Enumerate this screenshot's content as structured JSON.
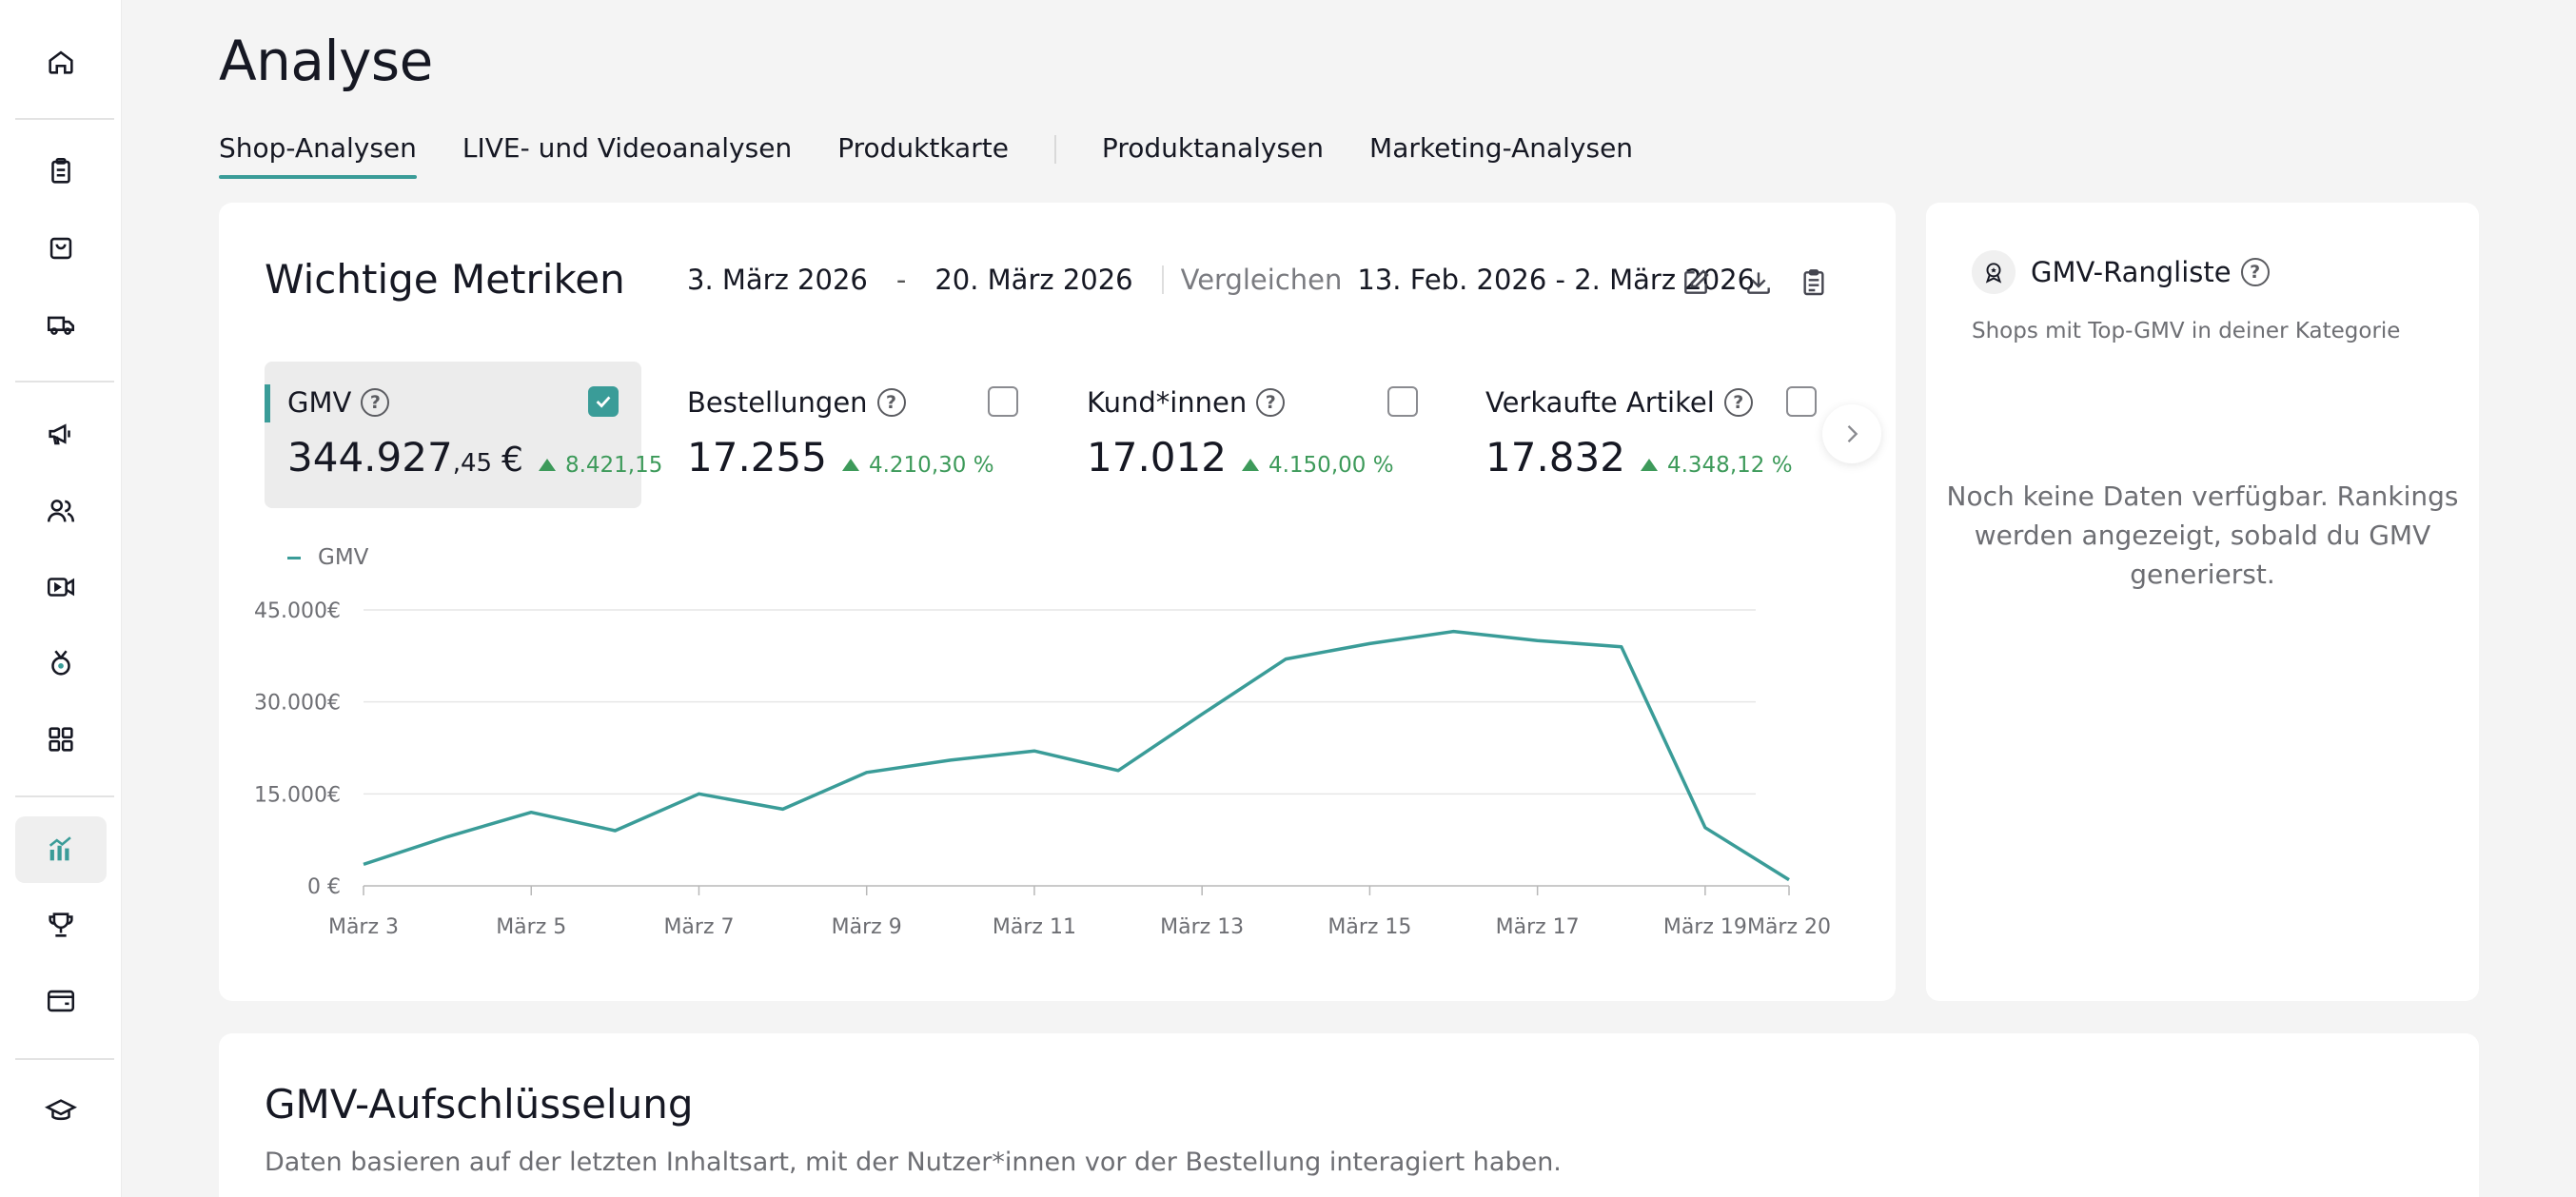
{
  "sidebar": {
    "items": [
      {
        "icon": "home-icon"
      },
      {
        "icon": "clipboard-icon"
      },
      {
        "icon": "shopping-bag-icon"
      },
      {
        "icon": "delivery-truck-icon"
      },
      {
        "icon": "megaphone-icon"
      },
      {
        "icon": "users-icon"
      },
      {
        "icon": "video-camera-icon"
      },
      {
        "icon": "affiliate-badge-icon"
      },
      {
        "icon": "apps-grid-icon"
      },
      {
        "icon": "analytics-chart-icon",
        "active": true
      },
      {
        "icon": "trophy-icon"
      },
      {
        "icon": "wallet-icon"
      },
      {
        "icon": "graduation-cap-icon"
      }
    ]
  },
  "header": {
    "title": "Analyse",
    "tabs": [
      {
        "label": "Shop-Analysen",
        "active": true
      },
      {
        "label": "LIVE- und Videoanalysen"
      },
      {
        "label": "Produktkarte"
      },
      {
        "label": "Produktanalysen"
      },
      {
        "label": "Marketing-Analysen"
      }
    ]
  },
  "metrics": {
    "title": "Wichtige Metriken",
    "date_start": "3. März 2026",
    "date_sep": "-",
    "date_end": "20. März 2026",
    "compare_label": "Vergleichen",
    "compare_range": "13. Feb. 2026 - 2. März 2026",
    "toolbar": [
      "edit-icon",
      "download-icon",
      "report-icon"
    ],
    "cards": [
      {
        "label": "GMV",
        "value_int": "344.927",
        "value_dec": ",45",
        "currency": "€",
        "delta": "8.421,15",
        "checked": true
      },
      {
        "label": "Bestellungen",
        "value_int": "17.255",
        "delta": "4.210,30 %",
        "checked": false
      },
      {
        "label": "Kund*innen",
        "value_int": "17.012",
        "delta": "4.150,00 %",
        "checked": false
      },
      {
        "label": "Verkaufte Artikel",
        "value_int": "17.832",
        "delta": "4.348,12 %",
        "checked": false
      }
    ],
    "accent": "#3a9c98",
    "positive": "#3d9a5a"
  },
  "chart_data": {
    "type": "line",
    "series": [
      {
        "name": "GMV",
        "x": [
          "März 3",
          "März 4",
          "März 5",
          "März 6",
          "März 7",
          "März 8",
          "März 9",
          "März 10",
          "März 11",
          "März 12",
          "März 13",
          "März 14",
          "März 15",
          "März 16",
          "März 17",
          "März 18",
          "März 19",
          "März 20"
        ],
        "values": [
          3500,
          8000,
          12000,
          9000,
          15000,
          12500,
          18500,
          20500,
          22000,
          18800,
          28000,
          37000,
          39500,
          41500,
          40000,
          39000,
          9500,
          1000
        ]
      }
    ],
    "x_tick_labels": [
      "März 3",
      "März 5",
      "März 7",
      "März 9",
      "März 11",
      "März 13",
      "März 15",
      "März 17",
      "März 19",
      "März 20"
    ],
    "y_ticks": [
      "0 €",
      "15.000€",
      "30.000€",
      "45.000€"
    ],
    "y_tick_values": [
      0,
      15000,
      30000,
      45000
    ],
    "ylim": [
      0,
      45000
    ],
    "grid": true,
    "legend": "top-left"
  },
  "ranking": {
    "title": "GMV-Rangliste",
    "subtitle": "Shops mit Top-GMV in deiner Kategorie",
    "empty": "Noch keine Daten verfügbar. Rankings werden angezeigt, sobald du GMV generierst."
  },
  "breakdown": {
    "title": "GMV-Aufschlüsselung",
    "subtitle": "Daten basieren auf der letzten Inhaltsart, mit der Nutzer*innen vor der Bestellung interagiert haben."
  }
}
